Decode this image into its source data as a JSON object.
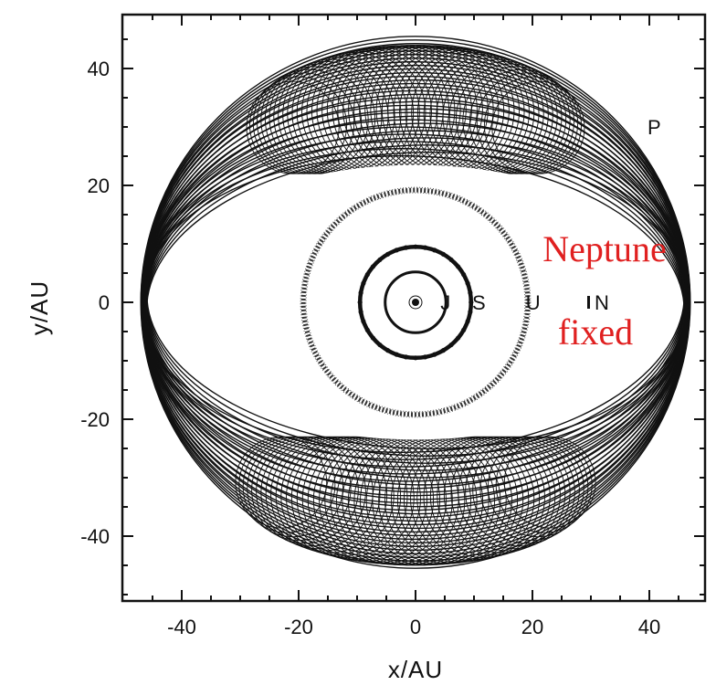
{
  "chart_data": {
    "type": "scatter",
    "title": "",
    "xlabel": "x/AU",
    "ylabel": "y/AU",
    "xlim": [
      -50,
      50
    ],
    "ylim": [
      -50,
      50
    ],
    "grid": false,
    "x_ticks": [
      -40,
      -20,
      0,
      20,
      40
    ],
    "y_ticks": [
      -40,
      -20,
      0,
      20,
      40
    ],
    "planets": [
      {
        "label": "J",
        "x": 5.2,
        "y": 0
      },
      {
        "label": "S",
        "x": 10,
        "y": 0
      },
      {
        "label": "U",
        "x": 19.5,
        "y": 0
      },
      {
        "label": "N",
        "x": 30,
        "y": 0
      },
      {
        "label": "P",
        "x": 40,
        "y": 30
      }
    ],
    "orbits": [
      {
        "name": "Jupiter orbit",
        "radius": 5.2,
        "style": "solid"
      },
      {
        "name": "Saturn orbit",
        "radius": 9.5,
        "style": "beaded"
      },
      {
        "name": "Uranus orbit",
        "radius": 19.2,
        "style": "dotted-band"
      }
    ],
    "pluto_resonant_trajectory": {
      "outer_radius_x": 47,
      "outer_radius_y": 45.5,
      "inner_radius_x": 46,
      "inner_radius_y": 25,
      "dense_lobes": [
        {
          "center_x": 0,
          "center_y": 30,
          "half_width": 21
        },
        {
          "center_x": 0,
          "center_y": -31,
          "half_width": 23
        }
      ]
    },
    "annotations": [
      "Neptune",
      "fixed"
    ]
  }
}
